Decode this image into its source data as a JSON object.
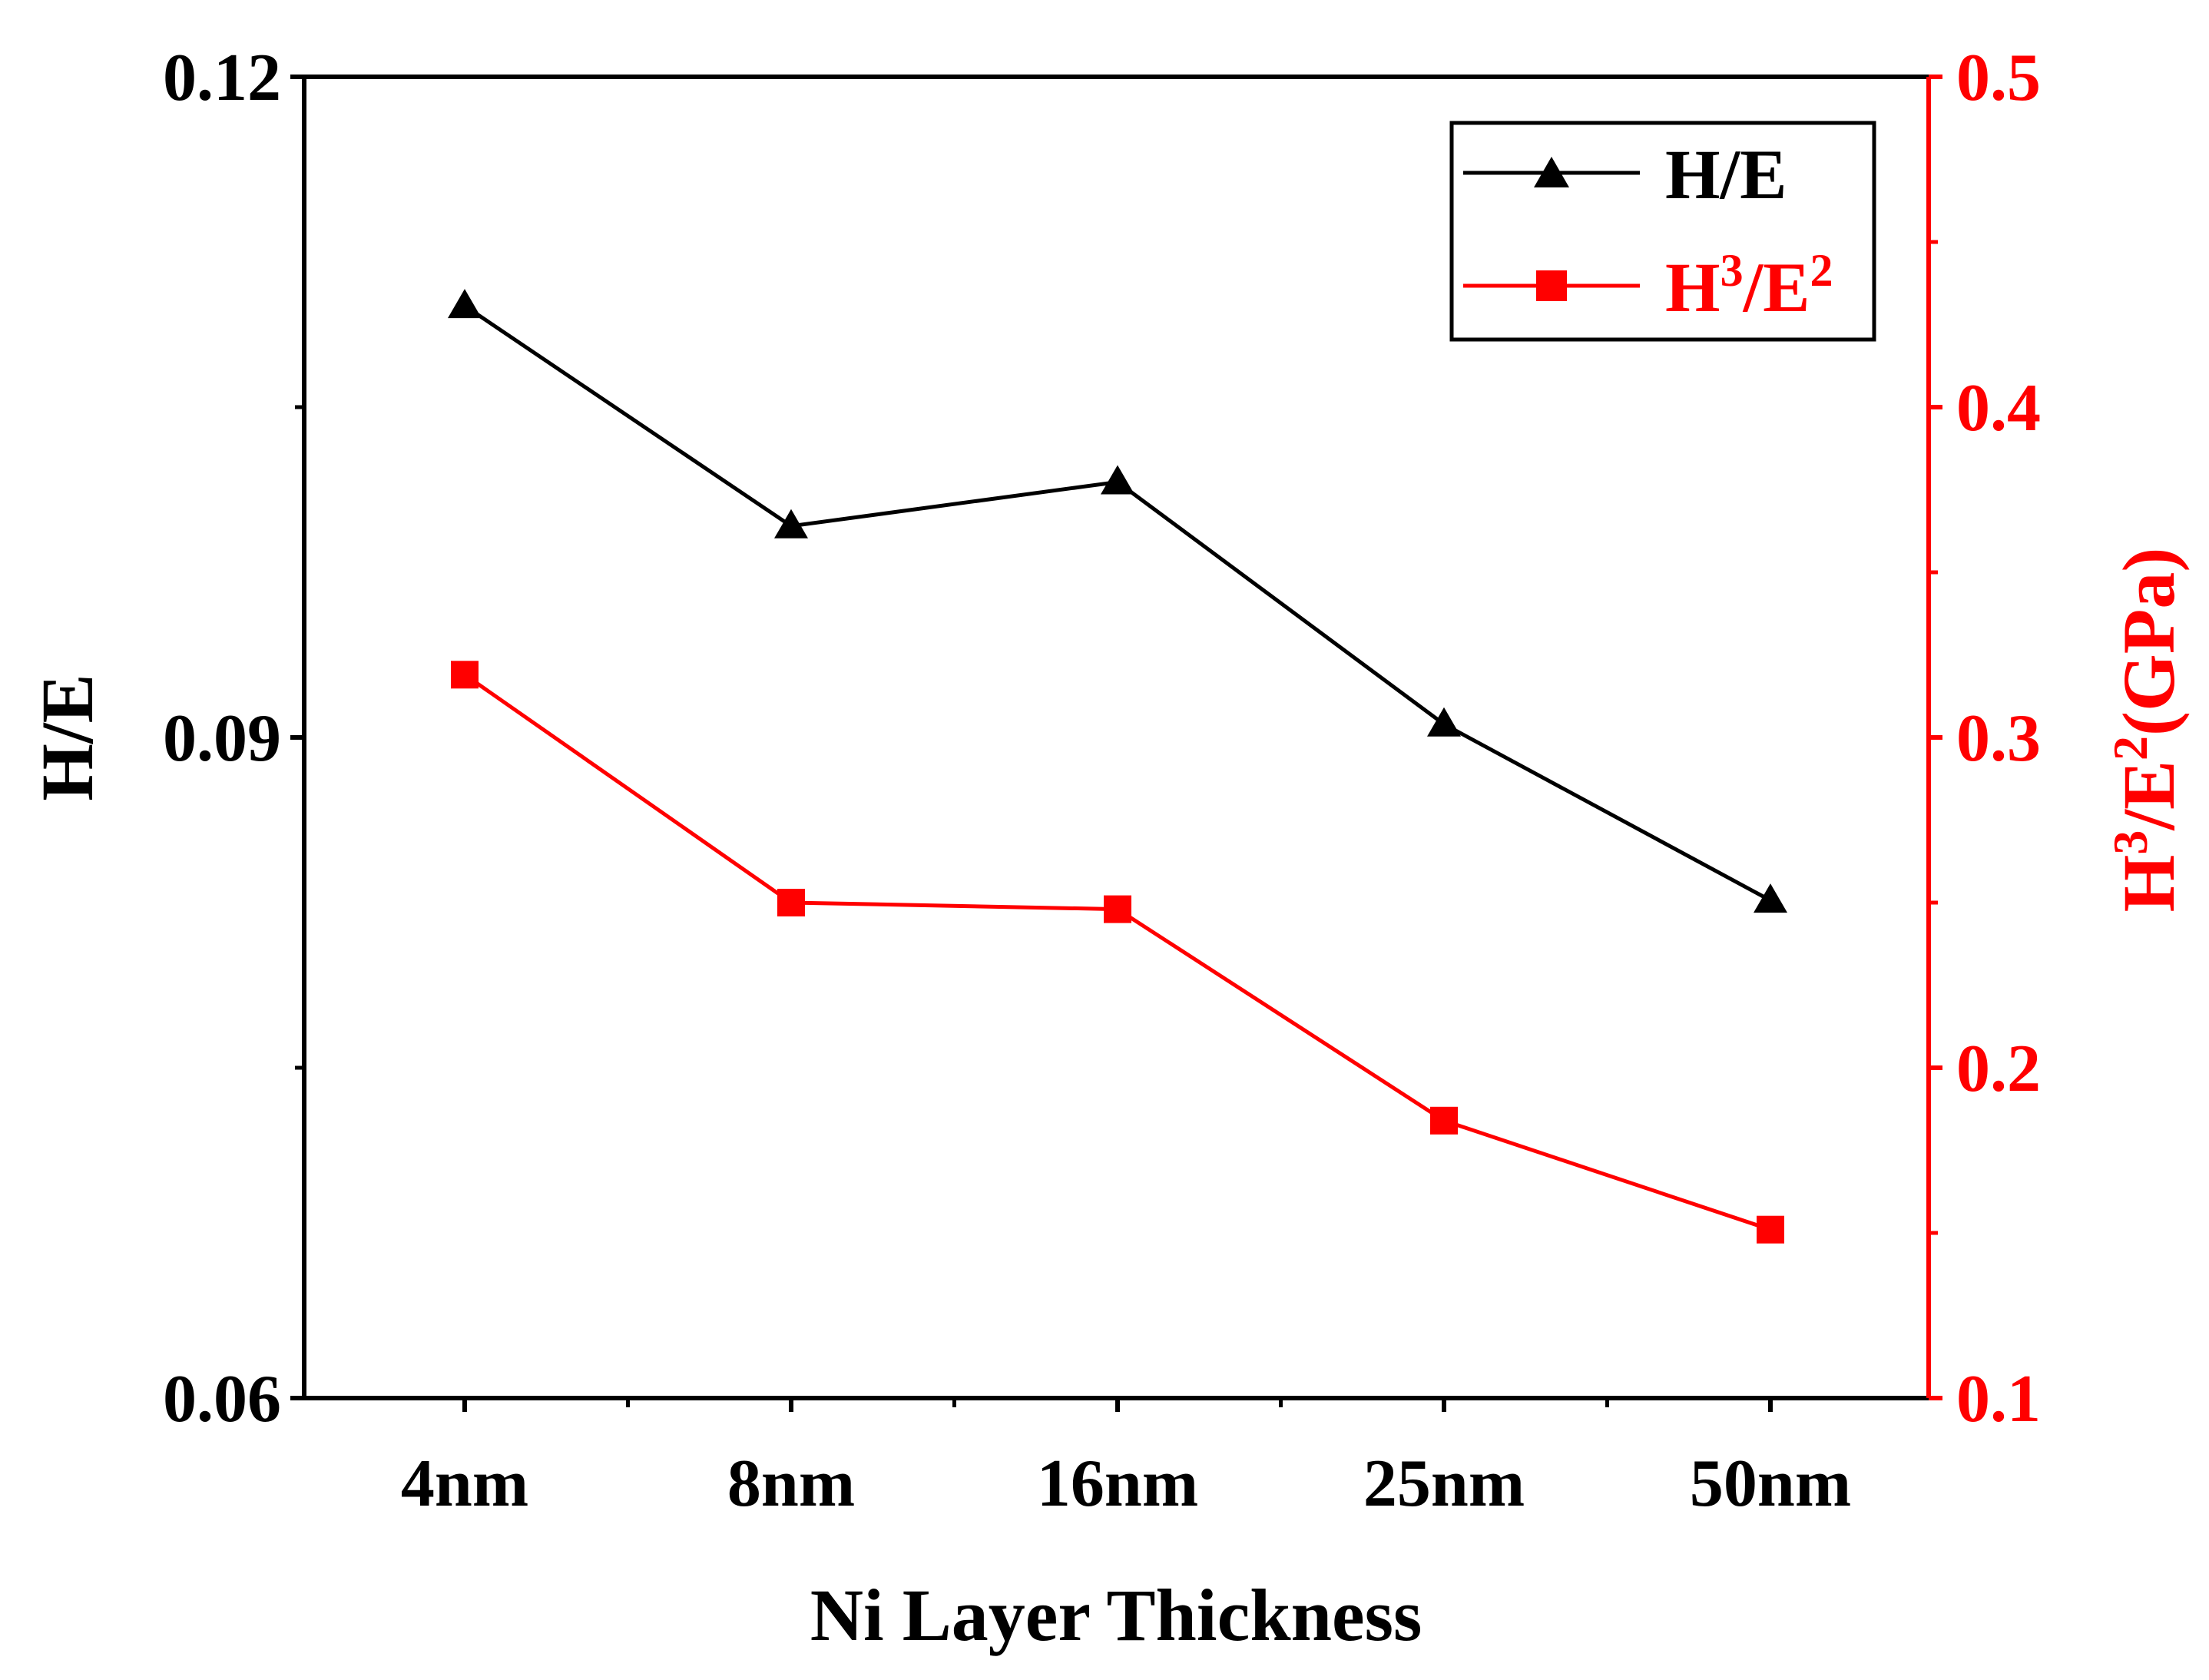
{
  "chart_data": {
    "type": "line",
    "categories": [
      "4nm",
      "8nm",
      "16nm",
      "25nm",
      "50nm"
    ],
    "xlabel": "Ni Layer Thickness",
    "y_left": {
      "label": "H/E",
      "lim": [
        0.06,
        0.12
      ],
      "ticks": [
        0.06,
        0.09,
        0.12
      ],
      "tick_labels": [
        "0.06",
        "0.09",
        "0.12"
      ],
      "minor_ticks": [
        0.075,
        0.105
      ]
    },
    "y_right": {
      "label_main": "H",
      "label_sup1": "3",
      "label_mid": "/E",
      "label_sup2": "2",
      "label_unit": "(GPa)",
      "lim": [
        0.1,
        0.5
      ],
      "ticks": [
        0.1,
        0.2,
        0.3,
        0.4,
        0.5
      ],
      "tick_labels": [
        "0.1",
        "0.2",
        "0.3",
        "0.4",
        "0.5"
      ]
    },
    "series": [
      {
        "name": "H/E",
        "axis": "left",
        "color": "#000000",
        "marker": "triangle",
        "values": [
          0.1096,
          0.0996,
          0.1016,
          0.0906,
          0.0826
        ]
      },
      {
        "name_main": "H",
        "name_sup1": "3",
        "name_mid": "/E",
        "name_sup2": "2",
        "axis": "right",
        "color": "#ff0000",
        "marker": "square",
        "values": [
          0.319,
          0.25,
          0.248,
          0.184,
          0.151
        ]
      }
    ],
    "legend": {
      "position": "top-right",
      "entry1": "H/E",
      "entry2_main": "H",
      "entry2_sup1": "3",
      "entry2_mid": "/E",
      "entry2_sup2": "2"
    }
  }
}
